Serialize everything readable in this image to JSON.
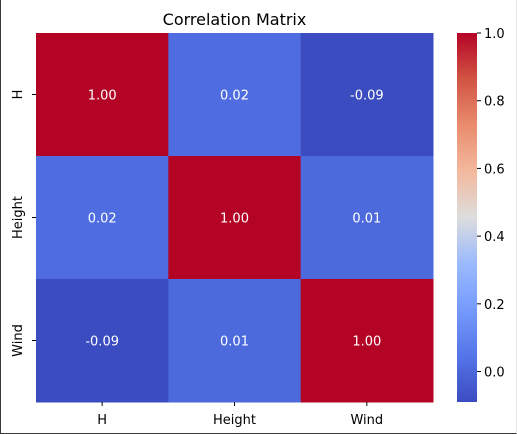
{
  "chart_data": {
    "type": "heatmap",
    "title": "Correlation Matrix",
    "xlabel": "",
    "ylabel": "",
    "x_labels": [
      "H",
      "Height",
      "Wind"
    ],
    "y_labels": [
      "H",
      "Height",
      "Wind"
    ],
    "values": [
      [
        1.0,
        0.02,
        -0.09
      ],
      [
        0.02,
        1.0,
        0.01
      ],
      [
        -0.09,
        0.01,
        1.0
      ]
    ],
    "annotations": [
      [
        "1.00",
        "0.02",
        "-0.09"
      ],
      [
        "0.02",
        "1.00",
        "0.01"
      ],
      [
        "-0.09",
        "0.01",
        "1.00"
      ]
    ],
    "colormap": "coolwarm",
    "colorbar": {
      "vmin": -0.09,
      "vmax": 1.0,
      "ticks": [
        "0.0",
        "0.2",
        "0.4",
        "0.6",
        "0.8",
        "1.0"
      ],
      "tick_values": [
        0.0,
        0.2,
        0.4,
        0.6,
        0.8,
        1.0
      ]
    },
    "colors": {
      "max": "#b40426",
      "mid": "#dddddd",
      "min": "#3b4cc0"
    }
  }
}
